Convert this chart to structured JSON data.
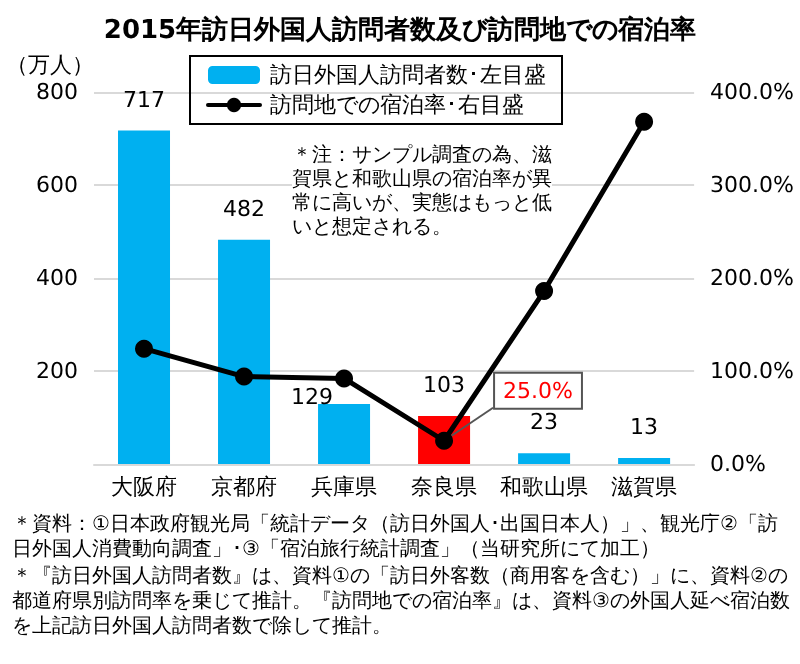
{
  "chart_data": {
    "type": "bar",
    "title": "2015年訪日外国人訪問者数及び訪問地での宿泊率",
    "ylabel": "（万人）",
    "categories": [
      "大阪府",
      "京都府",
      "兵庫県",
      "奈良県",
      "和歌山県",
      "滋賀県"
    ],
    "series": [
      {
        "name": "訪日外国人訪問者数･左目盛",
        "color": "#00b0f0",
        "colors": [
          "#00b0f0",
          "#00b0f0",
          "#00b0f0",
          "#ff0000",
          "#00b0f0",
          "#00b0f0"
        ],
        "values": [
          717,
          482,
          129,
          103,
          23,
          13
        ],
        "value_labels": [
          "717",
          "482",
          "129",
          "103",
          "23",
          "13"
        ]
      },
      {
        "name": "訪問地での宿泊率･右目盛",
        "type": "line",
        "axis": "y2",
        "color": "#000000",
        "marker": "circle",
        "values": [
          124,
          94,
          92,
          25,
          186,
          368
        ],
        "value_labels": [
          null,
          null,
          null,
          "25.0%",
          null,
          null
        ]
      }
    ],
    "ylim": [
      0,
      800
    ],
    "yticks": [
      200,
      400,
      600,
      800
    ],
    "y2lim": [
      0,
      400
    ],
    "y2ticks": [
      {
        "value": 0,
        "label": "0.0%"
      },
      {
        "value": 100,
        "label": "100.0%"
      },
      {
        "value": 200,
        "label": "200.0%"
      },
      {
        "value": 300,
        "label": "300.0%"
      },
      {
        "value": 400,
        "label": "400.0%"
      }
    ],
    "grid": "y",
    "legend": "top",
    "annotations": [
      "＊注：サンプル調査の為、滋賀県と和歌山県の宿泊率が異常に高いが、実態はもっと低いと想定される。",
      "＊資料：①日本政府観光局「統計データ（訪日外国人･出国日本人）」、観光庁②「訪日外国人消費動向調査」･③「宿泊旅行統計調査」（当研究所にて加工）",
      "＊『訪日外国人訪問者数』は、資料①の「訪日外客数（商用客を含む）」に、資料②の都道府県別訪問率を乗じて推計。『訪問地での宿泊率』は、資料③の外国人延べ宿泊数を上記訪日外国人訪問者数で除して推計。"
    ]
  }
}
